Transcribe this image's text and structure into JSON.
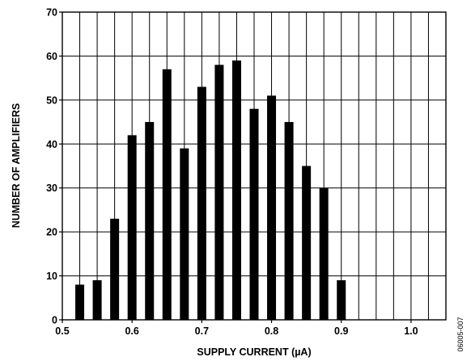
{
  "chart_data": {
    "type": "bar",
    "xlabel": "SUPPLY CURRENT (µA)",
    "ylabel": "NUMBER OF AMPLIFIERS",
    "xlim": [
      0.5,
      1.05
    ],
    "ylim": [
      0,
      70
    ],
    "x_ticks": [
      0.5,
      0.6,
      0.7,
      0.8,
      0.9,
      1.0
    ],
    "x_tick_labels": [
      "0.5",
      "0.6",
      "0.7",
      "0.8",
      "0.9",
      "1.0"
    ],
    "y_ticks": [
      0,
      10,
      20,
      30,
      40,
      50,
      60,
      70
    ],
    "y_tick_labels": [
      "0",
      "10",
      "20",
      "30",
      "40",
      "50",
      "60",
      "70"
    ],
    "grid": true,
    "x": [
      0.525,
      0.55,
      0.575,
      0.6,
      0.625,
      0.65,
      0.675,
      0.7,
      0.725,
      0.75,
      0.775,
      0.8,
      0.825,
      0.85,
      0.875,
      0.9
    ],
    "values": [
      8,
      9,
      23,
      42,
      45,
      57,
      39,
      53,
      58,
      59,
      48,
      51,
      45,
      35,
      30,
      9
    ],
    "bar_color": "#000000",
    "grid_color": "#000000"
  },
  "figure_code": "06005-007"
}
